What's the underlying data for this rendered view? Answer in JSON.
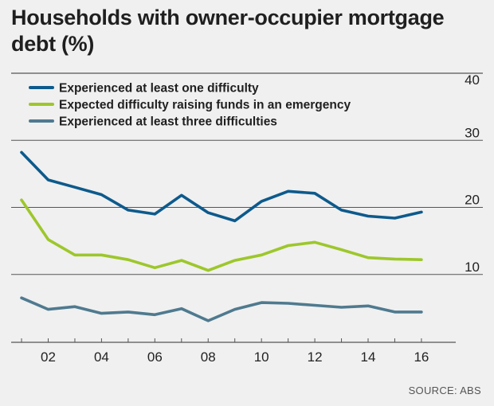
{
  "title": "Households with owner-occupier mortgage debt (%)",
  "source": "SOURCE: ABS",
  "colors": {
    "background": "#f0f0f0",
    "gridline": "#555555",
    "series": [
      "#0d5a8c",
      "#9dc72b",
      "#4f7a8f"
    ]
  },
  "chart_data": {
    "type": "line",
    "title": "Households with owner-occupier mortgage debt (%)",
    "xlabel": "",
    "ylabel": "",
    "x": [
      1,
      2,
      3,
      4,
      5,
      6,
      7,
      8,
      9,
      10,
      11,
      12,
      13,
      14,
      15,
      16
    ],
    "xticks": [
      2,
      4,
      6,
      8,
      10,
      12,
      14,
      16
    ],
    "xtick_labels": [
      "02",
      "04",
      "06",
      "08",
      "10",
      "12",
      "14",
      "16"
    ],
    "xlim": [
      0.7,
      16.6
    ],
    "ylim": [
      0,
      40
    ],
    "yticks": [
      10,
      20,
      30,
      40
    ],
    "ytick_labels": [
      "10",
      "20",
      "30",
      "40"
    ],
    "grid": "horizontal",
    "legend_position": "top-left",
    "series": [
      {
        "name": "Experienced at least one difficulty",
        "color": "#0d5a8c",
        "values": [
          28.2,
          24.1,
          23.0,
          21.9,
          19.6,
          19.0,
          21.8,
          19.2,
          18.0,
          20.9,
          22.4,
          22.1,
          19.6,
          18.7,
          18.4,
          19.3
        ]
      },
      {
        "name": "Expected difficulty raising funds in an emergency",
        "color": "#9dc72b",
        "values": [
          21.1,
          15.2,
          12.9,
          12.9,
          12.2,
          11.0,
          12.1,
          10.6,
          12.1,
          12.9,
          14.3,
          14.8,
          13.7,
          12.5,
          12.3,
          12.2
        ]
      },
      {
        "name": "Experienced at least three difficulties",
        "color": "#4f7a8f",
        "values": [
          6.5,
          4.8,
          5.2,
          4.2,
          4.4,
          4.0,
          4.9,
          3.1,
          4.8,
          5.8,
          5.7,
          5.4,
          5.1,
          5.3,
          4.4,
          4.4
        ]
      }
    ]
  }
}
